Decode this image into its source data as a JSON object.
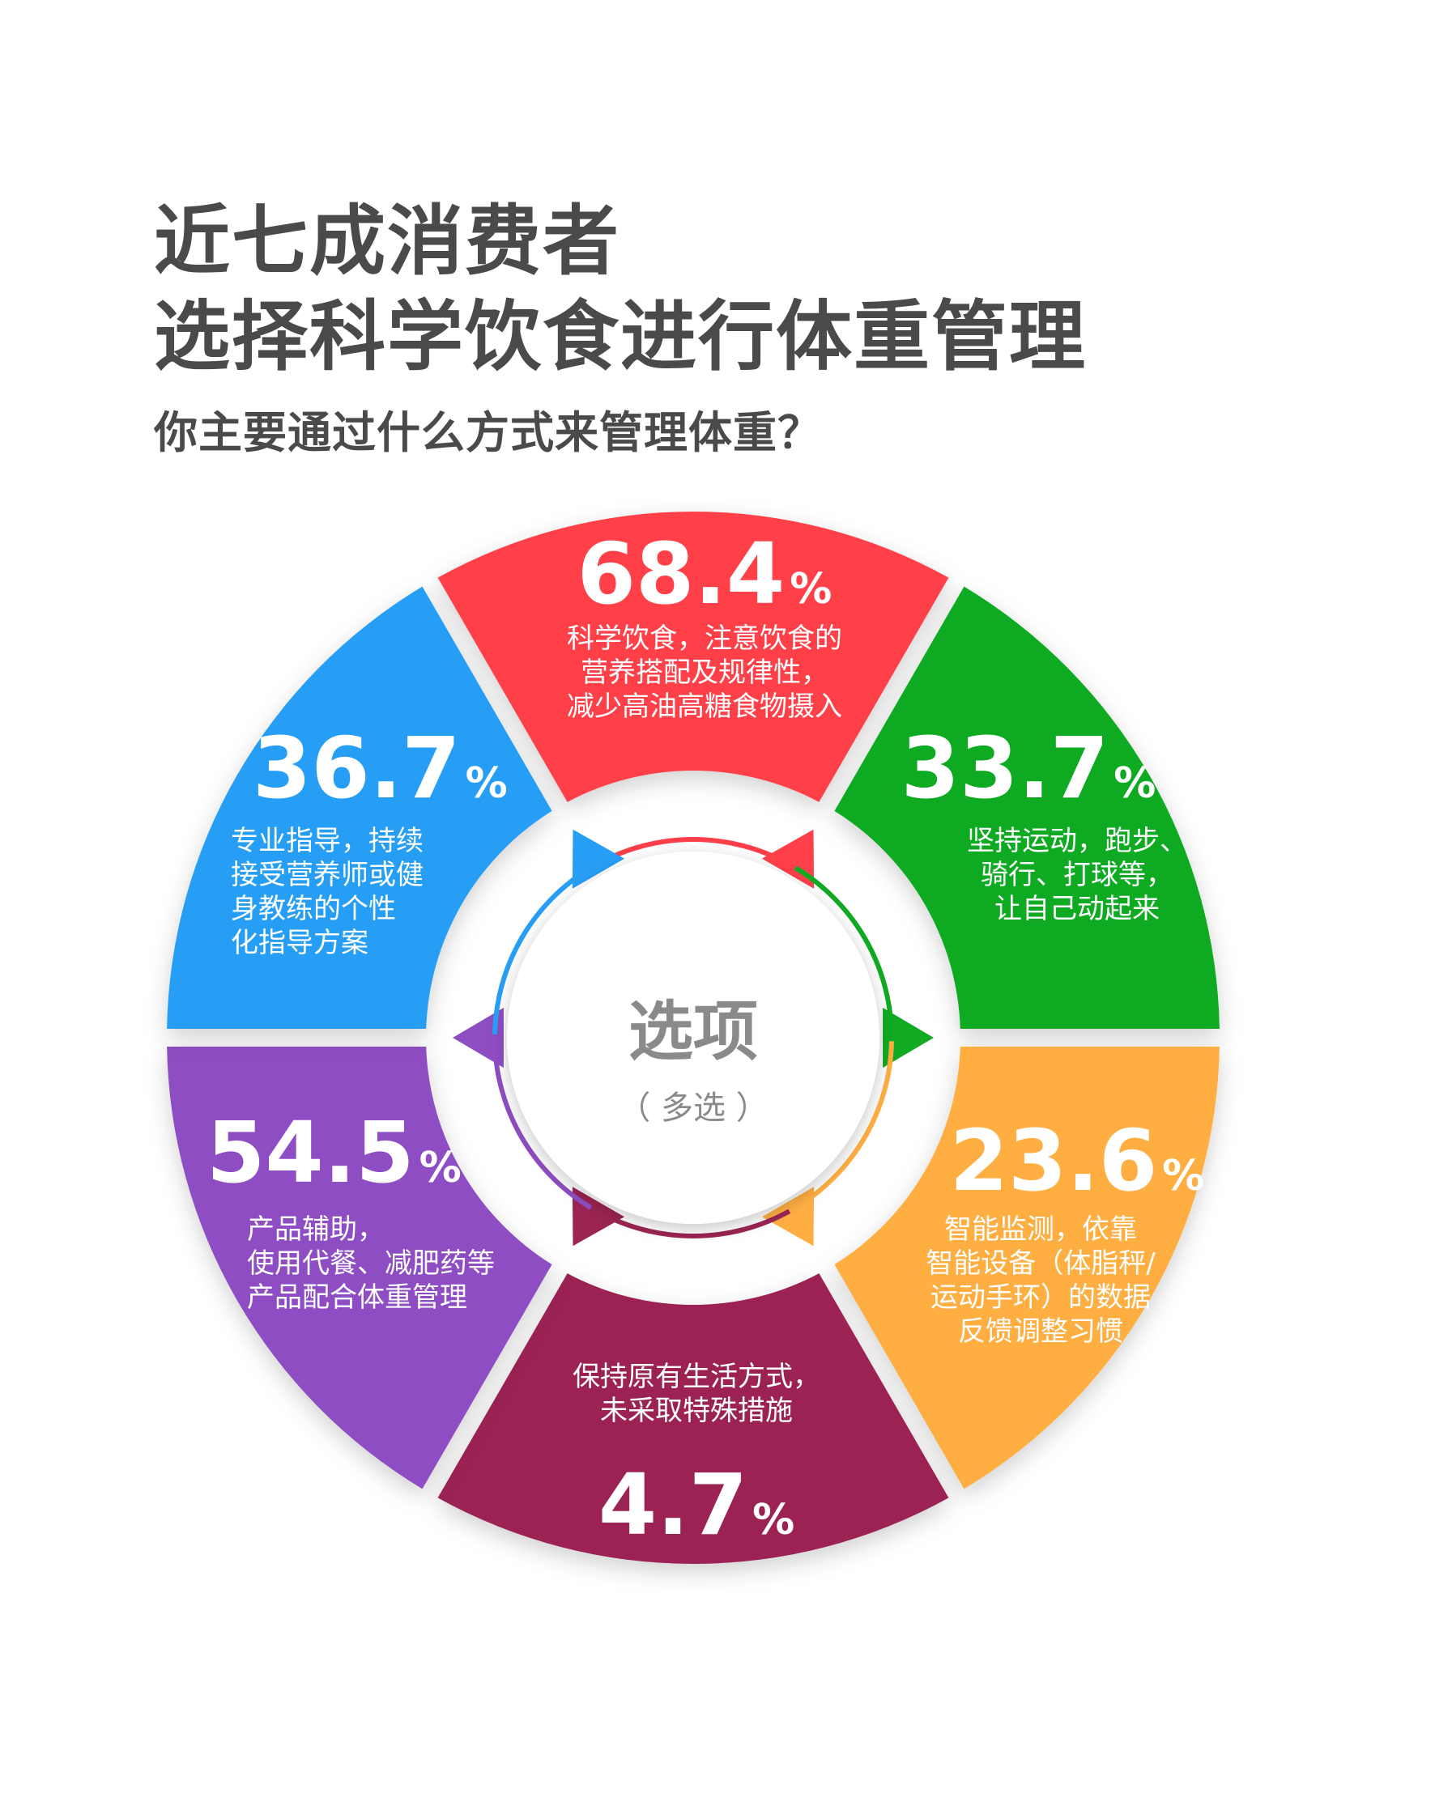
{
  "page": {
    "title_line1": "近七成消费者",
    "title_line2": "选择科学饮食进行体重管理",
    "subtitle": "你主要通过什么方式来管理体重？"
  },
  "center": {
    "label": "选项",
    "sublabel": "（ 多选 ）"
  },
  "colors": {
    "red": "#ff3f4a",
    "green": "#11aa22",
    "orange": "#ffae42",
    "maroon": "#9b2452",
    "purple": "#8e4dc2",
    "blue": "#279ef6"
  },
  "chart_data": {
    "type": "pie",
    "title": "你主要通过什么方式来管理体重？",
    "unit": "%",
    "note": "（ 多选 ）",
    "slices": [
      {
        "value": 68.4,
        "text": "68.4",
        "lines": [
          "科学饮食，注意饮食的",
          "营养搭配及规律性，",
          "减少高油高糖食物摄入"
        ],
        "color": "#ff3f4a"
      },
      {
        "value": 33.7,
        "text": "33.7",
        "lines": [
          "坚持运动，跑步、",
          "骑行、打球等，",
          "让自己动起来"
        ],
        "color": "#11aa22"
      },
      {
        "value": 23.6,
        "text": "23.6",
        "lines": [
          "智能监测，依靠",
          "智能设备（体脂秤/",
          "运动手环）的数据",
          "反馈调整习惯"
        ],
        "color": "#ffae42"
      },
      {
        "value": 4.7,
        "text": "4.7",
        "lines": [
          "保持原有生活方式，",
          "未采取特殊措施"
        ],
        "color": "#9b2452"
      },
      {
        "value": 54.5,
        "text": "54.5",
        "lines": [
          "产品辅助，",
          "使用代餐、减肥药等",
          "产品配合体重管理"
        ],
        "color": "#8e4dc2"
      },
      {
        "value": 36.7,
        "text": "36.7",
        "lines": [
          "专业指导，持续",
          "接受营养师或健",
          "身教练的个性",
          "化指导方案"
        ],
        "color": "#279ef6"
      }
    ]
  }
}
